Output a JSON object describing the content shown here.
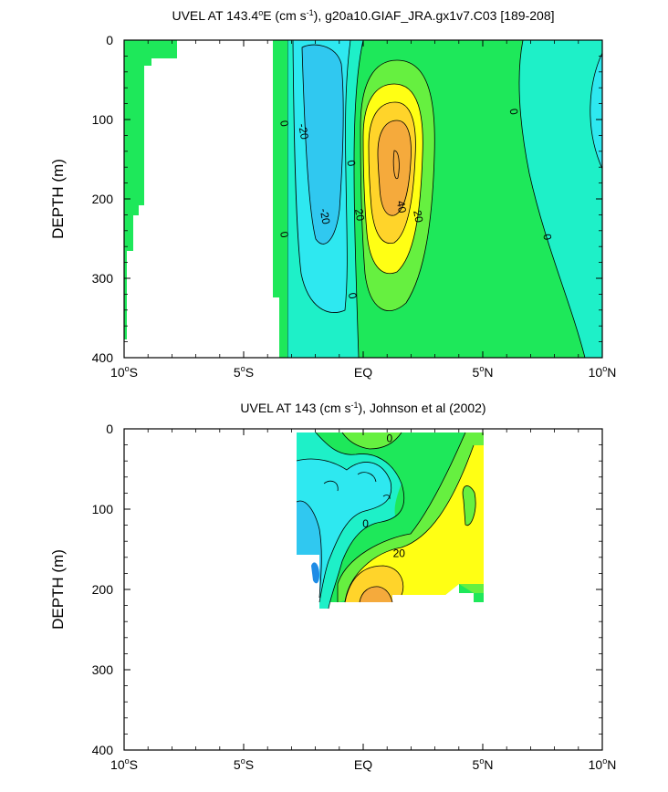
{
  "colors": {
    "green": "#1ee85a",
    "lightgreen": "#66f040",
    "aqua": "#1ef0c8",
    "cyan": "#2ee8f0",
    "blue": "#30c8f0",
    "yellow": "#ffff14",
    "gold": "#ffd42a",
    "orange": "#f5aa3c",
    "darkblue": "#1e8ce6"
  },
  "chart_data": [
    {
      "type": "contour",
      "title_main": "UVEL AT 143.4",
      "title_deg": "o",
      "title_mid": "E (cm s",
      "title_exp": "-1",
      "title_tail": "), g20a10.GIAF_JRA.gx1v7.C03 [189-208]",
      "ylabel": "DEPTH (m)",
      "xlim": [
        -10,
        10
      ],
      "ylim": [
        400,
        0
      ],
      "xticks": [
        {
          "v": -10,
          "num": "10",
          "deg": "o",
          "hem": "S"
        },
        {
          "v": -5,
          "num": "5",
          "deg": "o",
          "hem": "S"
        },
        {
          "v": 0,
          "num": "EQ",
          "deg": "",
          "hem": ""
        },
        {
          "v": 5,
          "num": "5",
          "deg": "o",
          "hem": "N"
        },
        {
          "v": 10,
          "num": "10",
          "deg": "o",
          "hem": "N"
        }
      ],
      "yticks": [
        0,
        100,
        200,
        300,
        400
      ],
      "contour_labels": [
        {
          "text": "0",
          "x": -3.3,
          "y": 105
        },
        {
          "text": "-20",
          "x": -2.5,
          "y": 115
        },
        {
          "text": "0",
          "x": -0.5,
          "y": 155
        },
        {
          "text": "-20",
          "x": -1.6,
          "y": 222
        },
        {
          "text": "0",
          "x": -3.3,
          "y": 245
        },
        {
          "text": "20",
          "x": -0.15,
          "y": 220
        },
        {
          "text": "40",
          "x": 1.6,
          "y": 210
        },
        {
          "text": "20",
          "x": 2.3,
          "y": 222
        },
        {
          "text": "0",
          "x": 6.3,
          "y": 90
        },
        {
          "text": "0",
          "x": 7.7,
          "y": 248
        },
        {
          "text": "0",
          "x": -0.45,
          "y": 322
        }
      ]
    },
    {
      "type": "contour",
      "title_main": "UVEL AT 143 (cm s",
      "title_exp": "-1",
      "title_tail": "), Johnson et al (2002)",
      "ylabel": "DEPTH (m)",
      "xlim": [
        -10,
        10
      ],
      "ylim": [
        400,
        0
      ],
      "xticks": [
        {
          "v": -10,
          "num": "10",
          "deg": "o",
          "hem": "S"
        },
        {
          "v": -5,
          "num": "5",
          "deg": "o",
          "hem": "S"
        },
        {
          "v": 0,
          "num": "EQ",
          "deg": "",
          "hem": ""
        },
        {
          "v": 5,
          "num": "5",
          "deg": "o",
          "hem": "N"
        },
        {
          "v": 10,
          "num": "10",
          "deg": "o",
          "hem": "N"
        }
      ],
      "yticks": [
        0,
        100,
        200,
        300,
        400
      ],
      "contour_labels": [
        {
          "text": "0",
          "x": 1.1,
          "y": 12
        },
        {
          "text": "0",
          "x": 0.1,
          "y": 118
        },
        {
          "text": "20",
          "x": 1.5,
          "y": 155
        }
      ]
    }
  ]
}
